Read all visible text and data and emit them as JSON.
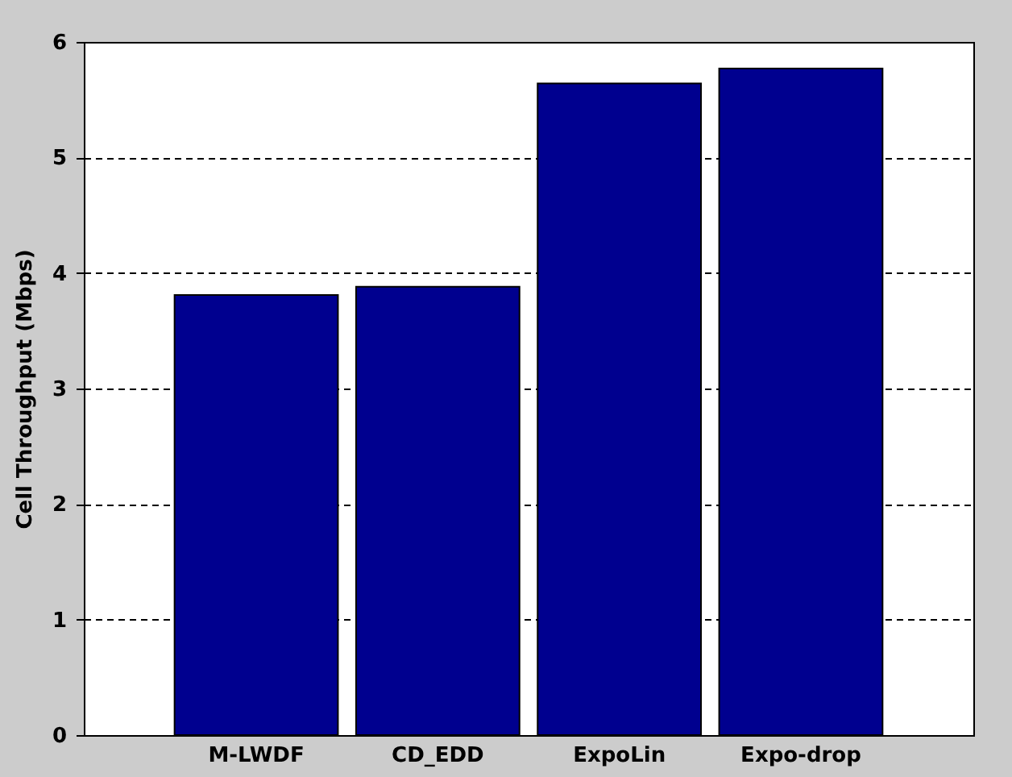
{
  "chart_data": {
    "type": "bar",
    "ylabel": "Cell Throughput (Mbps)",
    "categories": [
      "M-LWDF",
      "CD_EDD",
      "ExpoLin",
      "Expo-drop"
    ],
    "values": [
      3.81,
      3.88,
      5.64,
      5.77
    ],
    "color": "#00008f",
    "ylim": [
      0,
      6
    ],
    "yticks": [
      0,
      1,
      2,
      3,
      4,
      5,
      6
    ],
    "grid": "y"
  }
}
